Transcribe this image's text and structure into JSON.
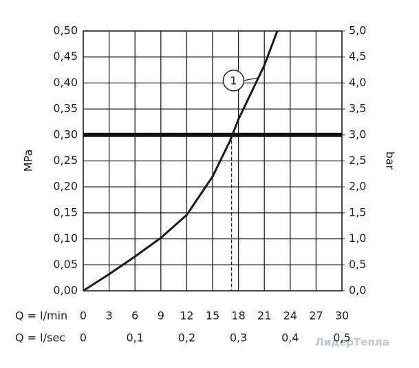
{
  "chart_data": {
    "type": "line",
    "ylabel": "MPa",
    "y2label": "bar",
    "x_row_label": "Q = l/min",
    "x2_row_label": "Q = l/sec",
    "xlim": [
      0,
      30
    ],
    "xticks": [
      0,
      3,
      6,
      9,
      12,
      15,
      18,
      21,
      24,
      27,
      30
    ],
    "x2lim": [
      0,
      0.5
    ],
    "x2ticks": [
      0,
      {
        "value": 0.1,
        "label": "0,1"
      },
      {
        "value": 0.2,
        "label": "0,2"
      },
      {
        "value": 0.3,
        "label": "0,3"
      },
      {
        "value": 0.4,
        "label": "0,4"
      },
      {
        "value": 0.5,
        "label": "0,5"
      }
    ],
    "ylim": [
      0,
      0.5
    ],
    "yticks": [
      {
        "value": 0,
        "label": "0,00"
      },
      {
        "value": 0.05,
        "label": "0,05"
      },
      {
        "value": 0.1,
        "label": "0,10"
      },
      {
        "value": 0.15,
        "label": "0,15"
      },
      {
        "value": 0.2,
        "label": "0,20"
      },
      {
        "value": 0.25,
        "label": "0,25"
      },
      {
        "value": 0.3,
        "label": "0,30"
      },
      {
        "value": 0.35,
        "label": "0,35"
      },
      {
        "value": 0.4,
        "label": "0,40"
      },
      {
        "value": 0.45,
        "label": "0,45"
      },
      {
        "value": 0.5,
        "label": "0,50"
      }
    ],
    "y2lim": [
      0,
      5
    ],
    "y2ticks": [
      {
        "value": 0,
        "label": "0,0"
      },
      {
        "value": 0.5,
        "label": "0,5"
      },
      {
        "value": 1,
        "label": "1,0"
      },
      {
        "value": 1.5,
        "label": "1,5"
      },
      {
        "value": 2,
        "label": "2,0"
      },
      {
        "value": 2.5,
        "label": "2,5"
      },
      {
        "value": 3,
        "label": "3,0"
      },
      {
        "value": 3.5,
        "label": "3,5"
      },
      {
        "value": 4,
        "label": "4,0"
      },
      {
        "value": 4.5,
        "label": "4,5"
      },
      {
        "value": 5,
        "label": "5,0"
      }
    ],
    "grid": true,
    "series": [
      {
        "name": "1",
        "color": "#1a1a1a",
        "x": [
          0,
          3,
          6,
          9,
          12,
          15,
          17,
          18,
          21,
          22.5
        ],
        "values": [
          0,
          0.032,
          0.066,
          0.102,
          0.146,
          0.22,
          0.288,
          0.33,
          0.434,
          0.5
        ]
      }
    ],
    "reference_y": 0.3,
    "reference_x": 17.2,
    "annotation": {
      "text": "1",
      "x": 20.3,
      "y": 0.41
    },
    "watermark": "ЛидерТепла"
  }
}
